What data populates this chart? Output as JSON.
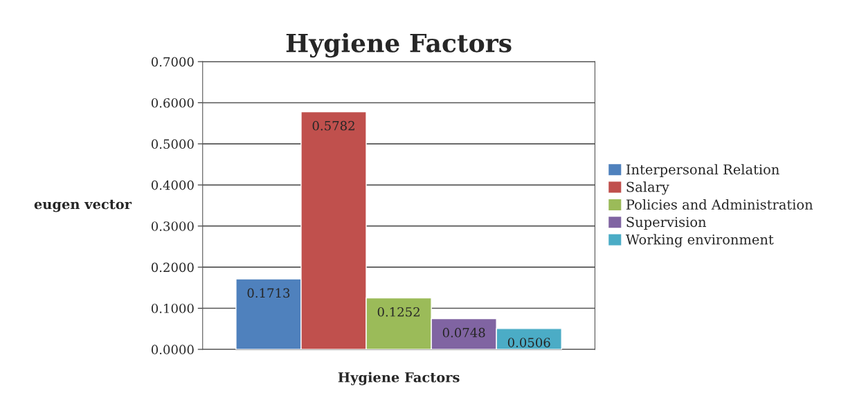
{
  "chart_data": {
    "type": "bar",
    "title": "Hygiene Factors",
    "xlabel": "Hygiene Factors",
    "ylabel": "eugen vector",
    "categories": [
      null
    ],
    "series": [
      {
        "name": "Interpersonal Relation",
        "color": "#4f81bd",
        "values": [
          0.1713
        ]
      },
      {
        "name": "Salary",
        "color": "#c0504d",
        "values": [
          0.5782
        ]
      },
      {
        "name": "Policies and Administration",
        "color": "#9bbb59",
        "values": [
          0.1252
        ]
      },
      {
        "name": "Supervision",
        "color": "#8064a2",
        "values": [
          0.0748
        ]
      },
      {
        "name": "Working environment",
        "color": "#4bacc6",
        "values": [
          0.0506
        ]
      }
    ],
    "ylim": [
      0,
      0.7
    ],
    "yticks": [
      {
        "value": 0,
        "label": "0.0000"
      },
      {
        "value": 0.1,
        "label": "0.1000"
      },
      {
        "value": 0.2,
        "label": "0.2000"
      },
      {
        "value": 0.3,
        "label": "0.3000"
      },
      {
        "value": 0.4,
        "label": "0.4000"
      },
      {
        "value": 0.5,
        "label": "0.5000"
      },
      {
        "value": 0.6,
        "label": "0.6000"
      },
      {
        "value": 0.7,
        "label": "0.7000"
      }
    ],
    "grid": "y",
    "legend": "right",
    "data_labels": true
  }
}
